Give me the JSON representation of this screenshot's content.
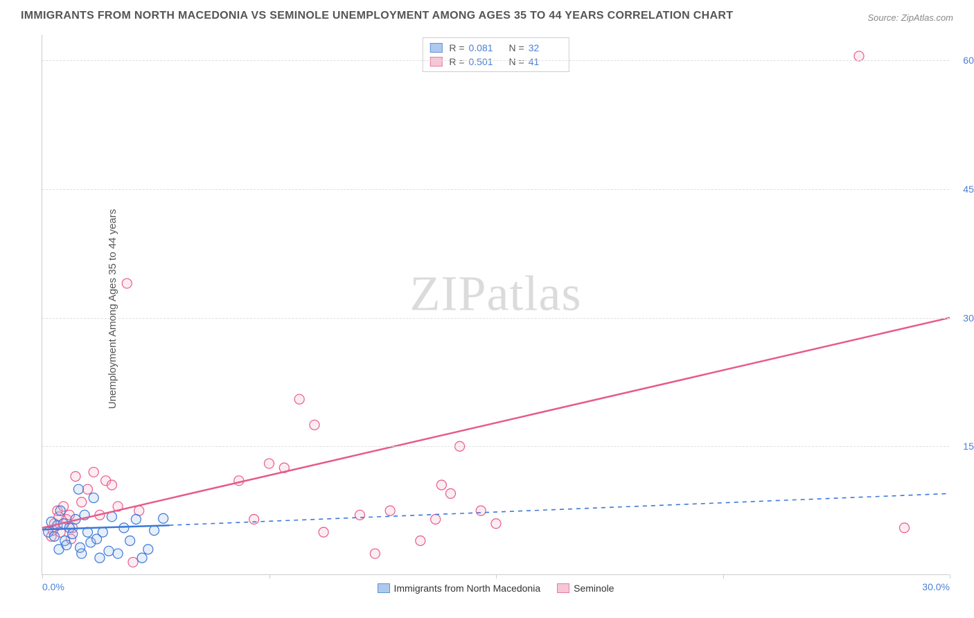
{
  "title": "IMMIGRANTS FROM NORTH MACEDONIA VS SEMINOLE UNEMPLOYMENT AMONG AGES 35 TO 44 YEARS CORRELATION CHART",
  "source": "Source: ZipAtlas.com",
  "y_axis_label": "Unemployment Among Ages 35 to 44 years",
  "watermark": "ZIPatlas",
  "chart": {
    "type": "scatter-with-regression",
    "background_color": "#ffffff",
    "grid_color": "#dddddd",
    "axis_color": "#cccccc",
    "tick_label_color": "#4a7fd8",
    "xlim": [
      0,
      30
    ],
    "ylim": [
      0,
      63
    ],
    "x_ticks": [
      0,
      7.5,
      15,
      22.5,
      30
    ],
    "x_tick_labels": [
      "0.0%",
      "",
      "",
      "",
      "30.0%"
    ],
    "y_ticks": [
      15,
      30,
      45,
      60
    ],
    "y_tick_labels": [
      "15.0%",
      "30.0%",
      "45.0%",
      "60.0%"
    ],
    "marker_radius": 7,
    "marker_stroke_width": 1.2,
    "marker_fill_opacity": 0.25,
    "line_width": 2.5,
    "dash_pattern": "6 6"
  },
  "series": [
    {
      "key": "blue",
      "name": "Immigrants from North Macedonia",
      "color_stroke": "#3b78d8",
      "color_fill": "#9bbce8",
      "R": "0.081",
      "N": "32",
      "regression": {
        "x1": 0,
        "y1": 5.3,
        "x2": 4.2,
        "y2": 5.8,
        "dashed_extension_to_x": 30,
        "dashed_extension_to_y": 9.5
      },
      "points": [
        [
          0.2,
          5.0
        ],
        [
          0.3,
          6.2
        ],
        [
          0.4,
          4.5
        ],
        [
          0.5,
          5.8
        ],
        [
          0.55,
          3.0
        ],
        [
          0.6,
          7.5
        ],
        [
          0.7,
          6.0
        ],
        [
          0.75,
          4.0
        ],
        [
          0.8,
          3.5
        ],
        [
          0.9,
          5.5
        ],
        [
          1.0,
          4.8
        ],
        [
          1.1,
          6.5
        ],
        [
          1.2,
          10.0
        ],
        [
          1.25,
          3.2
        ],
        [
          1.3,
          2.5
        ],
        [
          1.4,
          7.0
        ],
        [
          1.5,
          5.0
        ],
        [
          1.6,
          3.8
        ],
        [
          1.7,
          9.0
        ],
        [
          1.8,
          4.2
        ],
        [
          1.9,
          2.0
        ],
        [
          2.0,
          5.0
        ],
        [
          2.2,
          2.8
        ],
        [
          2.3,
          6.8
        ],
        [
          2.5,
          2.5
        ],
        [
          2.7,
          5.5
        ],
        [
          2.9,
          4.0
        ],
        [
          3.1,
          6.5
        ],
        [
          3.3,
          2.0
        ],
        [
          3.5,
          3.0
        ],
        [
          3.7,
          5.2
        ],
        [
          4.0,
          6.6
        ]
      ]
    },
    {
      "key": "pink",
      "name": "Seminole",
      "color_stroke": "#e75a8b",
      "color_fill": "#f4b8cc",
      "R": "0.501",
      "N": "41",
      "regression": {
        "x1": 0,
        "y1": 5.5,
        "x2": 30,
        "y2": 30.0
      },
      "points": [
        [
          0.3,
          4.5
        ],
        [
          0.4,
          6.0
        ],
        [
          0.5,
          7.5
        ],
        [
          0.6,
          5.0
        ],
        [
          0.7,
          8.0
        ],
        [
          0.8,
          6.5
        ],
        [
          0.9,
          7.0
        ],
        [
          1.0,
          5.5
        ],
        [
          1.1,
          11.5
        ],
        [
          1.3,
          8.5
        ],
        [
          1.5,
          10.0
        ],
        [
          1.7,
          12.0
        ],
        [
          1.9,
          7.0
        ],
        [
          2.1,
          11.0
        ],
        [
          2.3,
          10.5
        ],
        [
          2.5,
          8.0
        ],
        [
          2.8,
          34.0
        ],
        [
          3.0,
          1.5
        ],
        [
          3.2,
          7.5
        ],
        [
          6.5,
          11.0
        ],
        [
          7.0,
          6.5
        ],
        [
          7.5,
          13.0
        ],
        [
          8.0,
          12.5
        ],
        [
          8.5,
          20.5
        ],
        [
          9.0,
          17.5
        ],
        [
          9.3,
          5.0
        ],
        [
          10.5,
          7.0
        ],
        [
          11.0,
          2.5
        ],
        [
          11.5,
          7.5
        ],
        [
          12.5,
          4.0
        ],
        [
          13.0,
          6.5
        ],
        [
          13.2,
          10.5
        ],
        [
          13.5,
          9.5
        ],
        [
          13.8,
          15.0
        ],
        [
          14.5,
          7.5
        ],
        [
          15.0,
          6.0
        ],
        [
          27.0,
          60.5
        ],
        [
          28.5,
          5.5
        ],
        [
          0.35,
          5.2
        ],
        [
          0.55,
          6.8
        ],
        [
          0.95,
          4.2
        ]
      ]
    }
  ],
  "legend_top": {
    "rows": [
      {
        "swatch": "blue",
        "r_label": "R =",
        "r_value": "0.081",
        "n_label": "N =",
        "n_value": "32"
      },
      {
        "swatch": "pink",
        "r_label": "R =",
        "r_value": "0.501",
        "n_label": "N =",
        "n_value": "41"
      }
    ]
  },
  "legend_bottom": [
    {
      "swatch": "blue",
      "label": "Immigrants from North Macedonia"
    },
    {
      "swatch": "pink",
      "label": "Seminole"
    }
  ]
}
